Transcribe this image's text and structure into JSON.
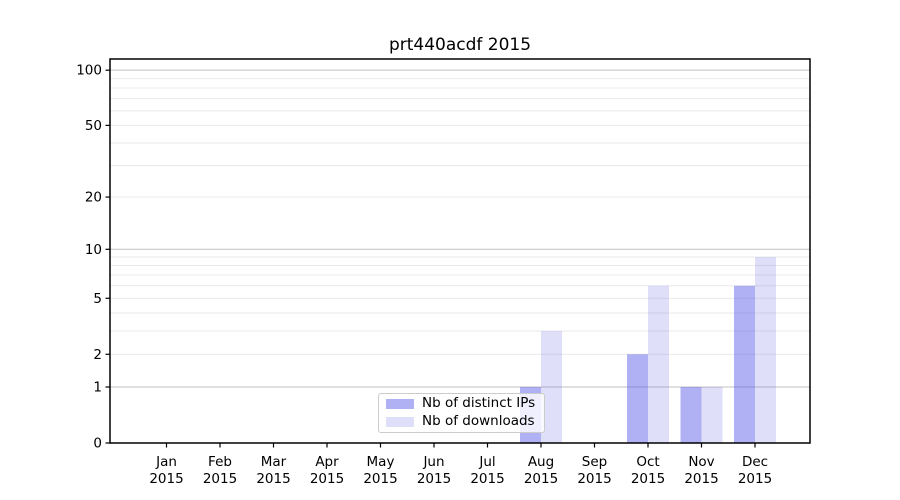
{
  "chart_data": {
    "type": "bar",
    "title": "prt440acdf 2015",
    "categories": [
      {
        "month": "Jan",
        "year": "2015"
      },
      {
        "month": "Feb",
        "year": "2015"
      },
      {
        "month": "Mar",
        "year": "2015"
      },
      {
        "month": "Apr",
        "year": "2015"
      },
      {
        "month": "May",
        "year": "2015"
      },
      {
        "month": "Jun",
        "year": "2015"
      },
      {
        "month": "Jul",
        "year": "2015"
      },
      {
        "month": "Aug",
        "year": "2015"
      },
      {
        "month": "Sep",
        "year": "2015"
      },
      {
        "month": "Oct",
        "year": "2015"
      },
      {
        "month": "Nov",
        "year": "2015"
      },
      {
        "month": "Dec",
        "year": "2015"
      }
    ],
    "series": [
      {
        "name": "Nb of distinct IPs",
        "slug": "distinct-ips",
        "color_hex": "#a6a6f2",
        "rgba": "rgba(80,80,230,0.45)",
        "values": [
          0,
          0,
          0,
          0,
          0,
          0,
          0,
          1,
          0,
          2,
          1,
          6
        ]
      },
      {
        "name": "Nb of downloads",
        "slug": "downloads",
        "color_hex": "#dcdcfa",
        "rgba": "rgba(80,80,230,0.18)",
        "values": [
          0,
          0,
          0,
          0,
          0,
          0,
          0,
          3,
          0,
          6,
          1,
          9
        ]
      }
    ],
    "yscale": "log1p",
    "yticks": [
      0,
      1,
      2,
      5,
      10,
      20,
      50,
      100
    ],
    "ylim": [
      0,
      115
    ],
    "grid": {
      "major_values": [
        1,
        10,
        100
      ],
      "minor_values": [
        2,
        3,
        4,
        5,
        6,
        7,
        8,
        9,
        20,
        30,
        40,
        50,
        60,
        70,
        80,
        90
      ],
      "major_color": "#c2c2c2",
      "minor_color": "#e9e9e9"
    },
    "axis_color": "#000000",
    "background_color": "#ffffff",
    "legend_position": "lower center-left inside plot"
  }
}
